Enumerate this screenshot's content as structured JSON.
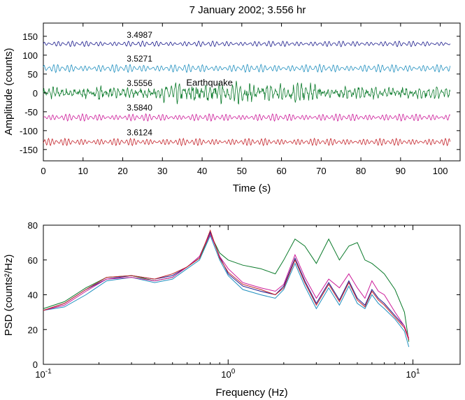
{
  "figure_title": "7 January 2002; 3.556 hr",
  "chart_data": [
    {
      "type": "line",
      "title": "7 January 2002; 3.556 hr",
      "xlabel": "Time (s)",
      "ylabel": "Amplitude (counts)",
      "xlim": [
        0,
        105
      ],
      "ylim": [
        -180,
        185
      ],
      "xticks": [
        0,
        10,
        20,
        30,
        40,
        50,
        60,
        70,
        80,
        90,
        100
      ],
      "yticks": [
        150,
        100,
        50,
        0,
        -50,
        -100,
        -150
      ],
      "grid": false,
      "annotations": [
        {
          "text": "Earthquake",
          "x": 36,
          "y": 19
        }
      ],
      "series": [
        {
          "name": "3.4987",
          "color": "#1a1a8c",
          "offset": 130,
          "amplitude": 7,
          "label_x": 21,
          "label_y": 146
        },
        {
          "name": "3.5271",
          "color": "#1f8fbf",
          "offset": 65,
          "amplitude": 10,
          "label_x": 21,
          "label_y": 83
        },
        {
          "name": "3.5556",
          "color": "#0a7a2a",
          "offset": 0,
          "amplitude": 13,
          "label_x": 21,
          "label_y": 18
        },
        {
          "name": "3.5840",
          "color": "#cc1a99",
          "offset": -65,
          "amplitude": 9,
          "label_x": 21,
          "label_y": -47
        },
        {
          "name": "3.6124",
          "color": "#c4232a",
          "offset": -130,
          "amplitude": 9,
          "label_x": 21,
          "label_y": -112
        }
      ]
    },
    {
      "type": "line",
      "xlabel": "Frequency (Hz)",
      "ylabel": "PSD (counts²/Hz)",
      "xscale": "log",
      "xlim": [
        0.1,
        18
      ],
      "ylim": [
        0,
        80
      ],
      "xtick_labels": [
        "10⁻¹",
        "10⁰",
        "10¹"
      ],
      "yticks": [
        0,
        20,
        40,
        60,
        80
      ],
      "grid": false,
      "x": [
        0.1,
        0.13,
        0.17,
        0.22,
        0.3,
        0.4,
        0.5,
        0.6,
        0.7,
        0.8,
        0.9,
        1.0,
        1.2,
        1.5,
        1.8,
        2.0,
        2.3,
        2.6,
        3.0,
        3.5,
        4.0,
        4.5,
        5.0,
        5.5,
        6.0,
        6.5,
        7.0,
        8.0,
        9.0,
        9.5
      ],
      "series": [
        {
          "color": "#1a1a8c",
          "values": [
            31,
            35,
            43,
            49,
            51,
            49,
            51,
            56,
            62,
            76,
            62,
            52,
            45,
            42,
            40,
            45,
            61,
            48,
            35,
            47,
            37,
            48,
            38,
            34,
            43,
            38,
            35,
            28,
            22,
            14
          ]
        },
        {
          "color": "#1f8fbf",
          "values": [
            31,
            33,
            40,
            48,
            50,
            47,
            49,
            55,
            60,
            74,
            60,
            51,
            43,
            40,
            38,
            43,
            58,
            45,
            32,
            44,
            34,
            45,
            35,
            32,
            40,
            35,
            32,
            26,
            19,
            10
          ]
        },
        {
          "color": "#0a7a2a",
          "values": [
            32,
            36,
            44,
            50,
            51,
            48,
            50,
            56,
            61,
            75,
            64,
            60,
            57,
            55,
            52,
            60,
            72,
            68,
            58,
            72,
            60,
            68,
            70,
            60,
            58,
            55,
            52,
            43,
            30,
            13
          ]
        },
        {
          "color": "#cc1a99",
          "values": [
            31,
            34,
            42,
            49,
            50,
            48,
            50,
            56,
            62,
            75,
            62,
            55,
            47,
            44,
            42,
            46,
            63,
            50,
            38,
            49,
            44,
            52,
            44,
            38,
            48,
            42,
            40,
            30,
            22,
            15
          ]
        },
        {
          "color": "#c4232a",
          "values": [
            31,
            35,
            43,
            50,
            51,
            49,
            52,
            56,
            61,
            77,
            61,
            53,
            46,
            43,
            40,
            44,
            60,
            47,
            34,
            46,
            36,
            47,
            37,
            33,
            42,
            37,
            34,
            27,
            21,
            14
          ]
        }
      ]
    }
  ]
}
